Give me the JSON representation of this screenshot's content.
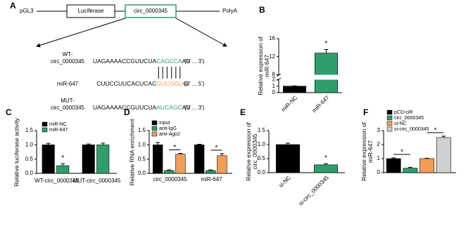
{
  "diagram": {
    "panel_label": "A",
    "vector": "pGL3",
    "luciferase": "Luciferase",
    "insert": "circ_0000345",
    "polya": "PolyA",
    "wt_label": [
      "WT-",
      "circ_0000345"
    ],
    "wt_sequence": [
      "UAGAAAACCGUUCUA",
      "CAGCCA",
      "AU"
    ],
    "wt_direction": "(5' ... 3')",
    "mir_label": "miR-647",
    "mir_sequence": [
      "CUUCCUUCACUCAC",
      "GUCGGU",
      "G"
    ],
    "mir_direction": "(3' ... 5')",
    "mut_label": [
      "MUT-",
      "circ_0000345"
    ],
    "mut_sequence": [
      "UAGAAAACCGUUCUA",
      "AUCAGC",
      "AU"
    ],
    "mut_direction": "(5' ... 3')"
  },
  "chart_data": [
    {
      "type": "bar",
      "panel_label": "B",
      "y_label": "Relative expression of miR-647",
      "categories": [
        "miR-NC",
        "miR-647"
      ],
      "values": [
        1.0,
        12.8
      ],
      "errors": [
        0.05,
        0.8
      ],
      "colors": [
        "#000000",
        "#2e9e6b"
      ],
      "ylim_segments": [
        [
          0,
          2
        ],
        [
          8,
          16
        ]
      ],
      "yticks": [
        0,
        1,
        2,
        8,
        12,
        16
      ],
      "annotations": [
        "*"
      ]
    },
    {
      "type": "bar",
      "panel_label": "C",
      "y_label": "Relative luciferase activity",
      "categories": [
        "WT-circ_0000345",
        "MUT-circ_0000345"
      ],
      "series": [
        {
          "name": "miR-NC",
          "color": "#000000",
          "values": [
            1.0,
            1.0
          ],
          "errors": [
            0.05,
            0.03
          ]
        },
        {
          "name": "miR-647",
          "color": "#2e9e6b",
          "values": [
            0.27,
            1.0
          ],
          "errors": [
            0.07,
            0.06
          ]
        }
      ],
      "ylim": [
        0,
        1.5
      ],
      "yticks": [
        {
          "value": 0,
          "label": "0.0"
        },
        {
          "value": 0.5,
          "label": "0.5"
        },
        {
          "value": 1,
          "label": "1.0"
        },
        {
          "value": 1.5,
          "label": "1.5"
        }
      ],
      "legend": "upper left",
      "annotations": [
        "*"
      ]
    },
    {
      "type": "bar",
      "panel_label": "D",
      "y_label": "Relative RNA enrichment",
      "categories": [
        "circ_0000345",
        "miR-647"
      ],
      "series": [
        {
          "name": "Input",
          "color": "#000000",
          "values": [
            1.0,
            1.0
          ],
          "errors": [
            0.08,
            0.02
          ]
        },
        {
          "name": "anti-IgG",
          "color": "#2e9e6b",
          "values": [
            0.1,
            0.1
          ],
          "errors": [
            0.02,
            0.02
          ]
        },
        {
          "name": "anti-Ago2",
          "color": "#f39c55",
          "values": [
            0.67,
            0.62
          ],
          "errors": [
            0.03,
            0.07
          ]
        }
      ],
      "ylim": [
        0,
        1.5
      ],
      "yticks": [
        {
          "value": 0,
          "label": "0.0"
        },
        {
          "value": 0.5,
          "label": "0.5"
        },
        {
          "value": 1,
          "label": "1.0"
        },
        {
          "value": 1.5,
          "label": "1.5"
        }
      ],
      "legend": "upper left",
      "annotations": [
        "*",
        "*"
      ]
    },
    {
      "type": "bar",
      "panel_label": "E",
      "y_label": "Relative expression of circ_0000345",
      "categories": [
        "si-NC",
        "si-circ_0000345"
      ],
      "values": [
        1.0,
        0.28
      ],
      "errors": [
        0.05,
        0.04
      ],
      "colors": [
        "#000000",
        "#2e9e6b"
      ],
      "ylim": [
        0,
        1.5
      ],
      "yticks": [
        {
          "value": 0,
          "label": "0.0"
        },
        {
          "value": 0.5,
          "label": "0.5"
        },
        {
          "value": 1,
          "label": "1.0"
        },
        {
          "value": 1.5,
          "label": "1.5"
        }
      ],
      "annotations": [
        "*"
      ]
    },
    {
      "type": "bar",
      "panel_label": "F",
      "y_label": "Relative expression of miR-647",
      "series": [
        {
          "name": "pCD-ciR",
          "color": "#000000",
          "values": [
            1.0
          ],
          "errors": [
            0.05
          ]
        },
        {
          "name": "circ_0000345",
          "color": "#2e9e6b",
          "values": [
            0.32
          ],
          "errors": [
            0.06
          ]
        },
        {
          "name": "si-NC",
          "color": "#f39c55",
          "values": [
            1.0
          ],
          "errors": [
            0.03
          ]
        },
        {
          "name": "si-circ_0000345",
          "color": "#d0d0d0",
          "values": [
            2.5
          ],
          "errors": [
            0.1
          ]
        }
      ],
      "ylim": [
        0,
        3
      ],
      "yticks": [
        0,
        1,
        2,
        3
      ],
      "legend": "upper left",
      "annotations": [
        "*",
        "*"
      ]
    }
  ]
}
